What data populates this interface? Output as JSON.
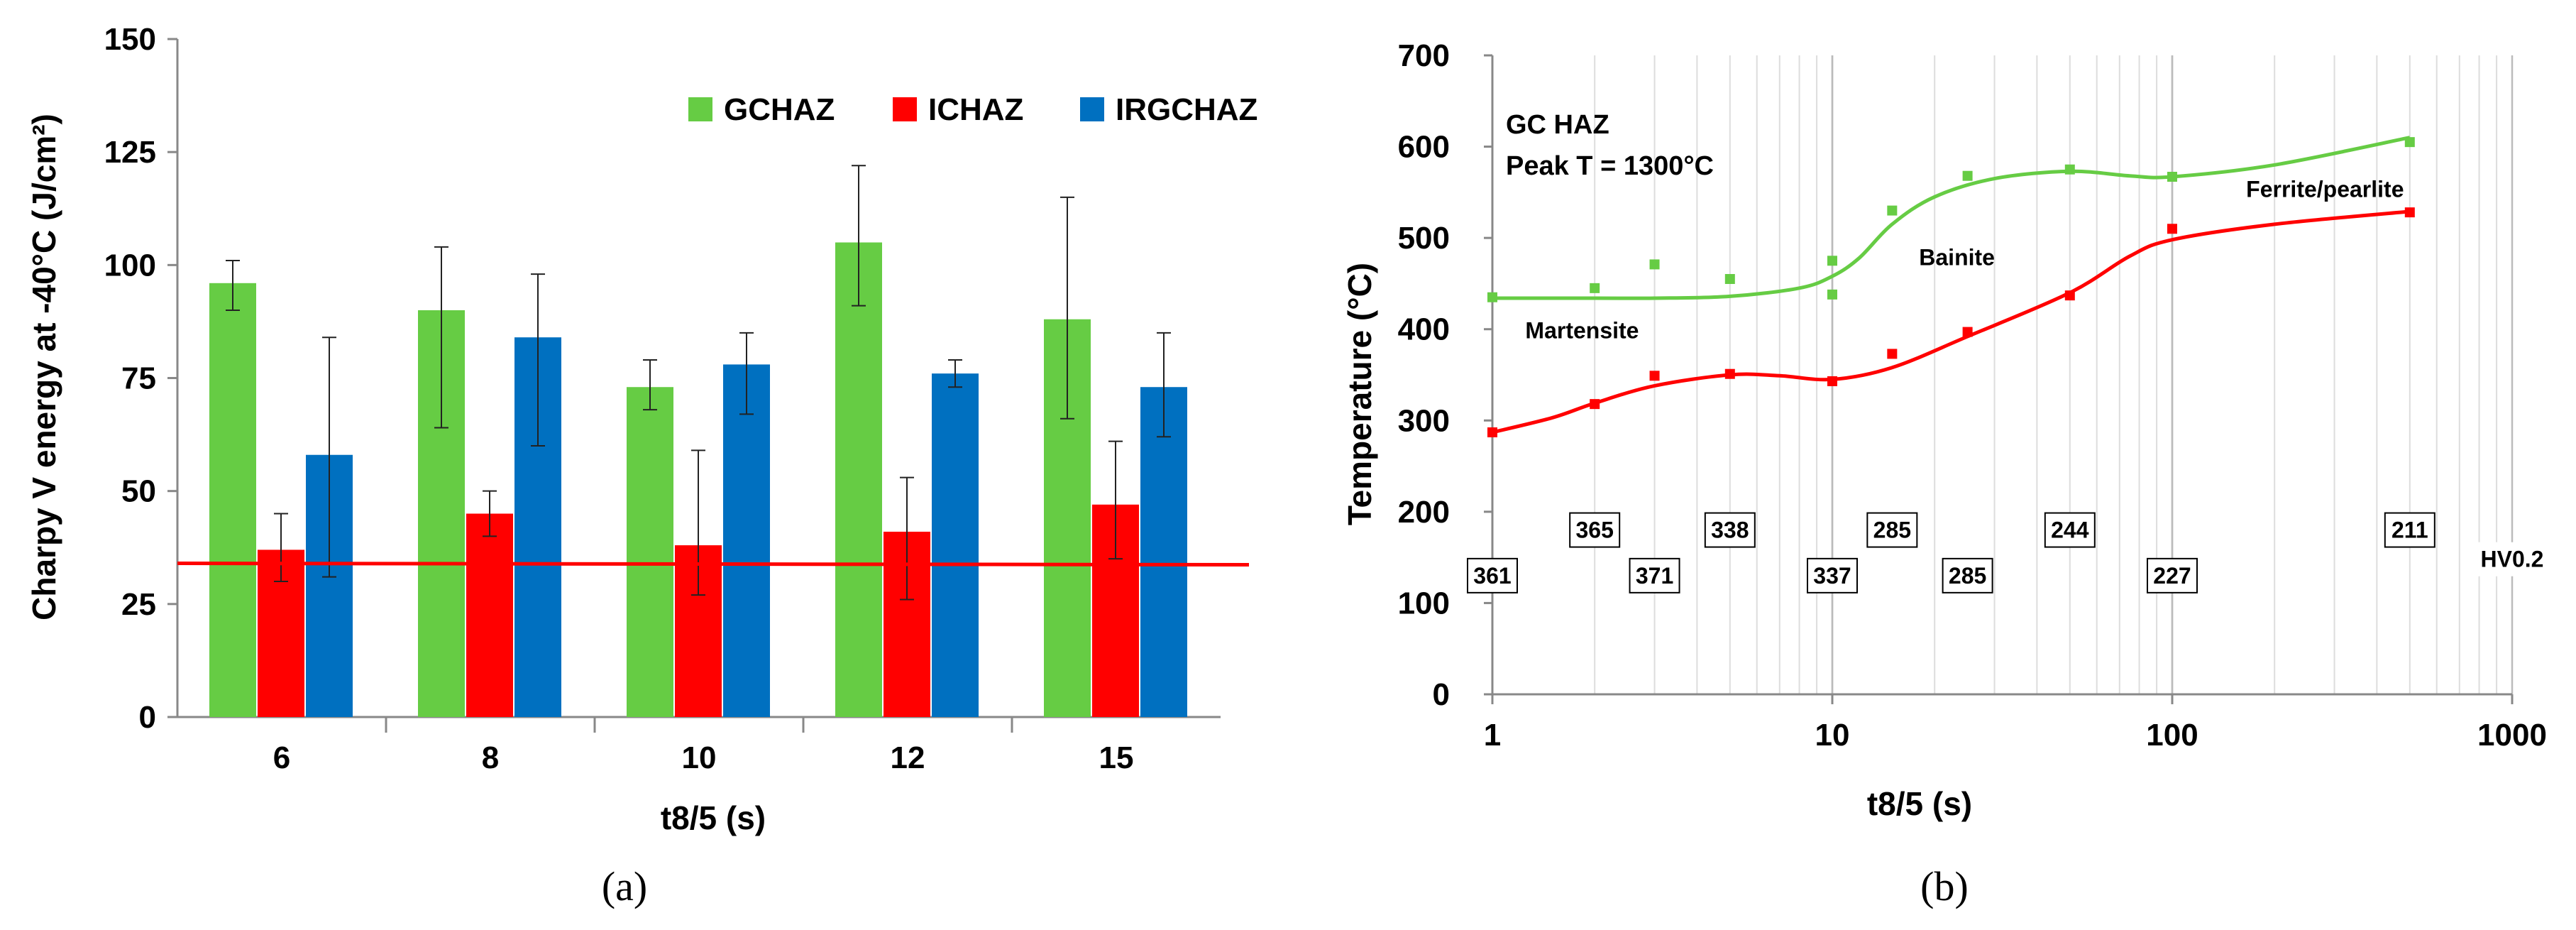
{
  "chart_data": [
    {
      "id": "a",
      "type": "bar",
      "caption": "(a)",
      "xlabel": "t8/5 (s)",
      "ylabel": "Charpy V energy at -40°C (J/cm²)",
      "ylim": [
        0,
        150
      ],
      "yticks": [
        0,
        25,
        50,
        75,
        100,
        125,
        150
      ],
      "categories": [
        "6",
        "8",
        "10",
        "12",
        "15"
      ],
      "series": [
        {
          "name": "GCHAZ",
          "color": "#66cc44",
          "values": [
            96,
            90,
            73,
            105,
            88
          ],
          "err_low": [
            90,
            64,
            68,
            91,
            66
          ],
          "err_high": [
            101,
            104,
            79,
            122,
            115
          ]
        },
        {
          "name": "ICHAZ",
          "color": "#ff0000",
          "values": [
            37,
            45,
            38,
            41,
            47
          ],
          "err_low": [
            30,
            40,
            27,
            26,
            35
          ],
          "err_high": [
            45,
            50,
            59,
            53,
            61
          ]
        },
        {
          "name": "IRGCHAZ",
          "color": "#0070c0",
          "values": [
            58,
            84,
            78,
            76,
            73
          ],
          "err_low": [
            31,
            60,
            67,
            73,
            62
          ],
          "err_high": [
            84,
            98,
            85,
            79,
            85
          ]
        }
      ],
      "reference_line": {
        "y_start": 34,
        "y_end": 34,
        "color": "#ff0000"
      },
      "legend_position": "top-right",
      "grid": false
    },
    {
      "id": "b",
      "type": "line",
      "caption": "(b)",
      "xlabel": "t8/5 (s)",
      "ylabel": "Temperature (°C)",
      "xscale": "log",
      "xlim": [
        1,
        1000
      ],
      "xticks": [
        1,
        10,
        100,
        1000
      ],
      "xtick_labels": [
        "1",
        "10",
        "100",
        "1000"
      ],
      "ylim": [
        0,
        700
      ],
      "yticks": [
        0,
        100,
        200,
        300,
        400,
        500,
        600,
        700
      ],
      "title_lines": [
        "GC HAZ",
        "Peak T = 1300°C"
      ],
      "phase_labels": [
        {
          "text": "Martensite",
          "x": 1.25,
          "y": 390
        },
        {
          "text": "Bainite",
          "x": 18,
          "y": 470
        },
        {
          "text": "Ferrite/pearlite",
          "x": 165,
          "y": 545
        }
      ],
      "series": [
        {
          "name": "Start (green)",
          "color": "#66cc44",
          "points": [
            [
              1,
              435
            ],
            [
              2,
              445
            ],
            [
              3,
              471
            ],
            [
              5,
              455
            ],
            [
              10,
              475
            ],
            [
              10,
              438
            ],
            [
              15,
              530
            ],
            [
              25,
              568
            ],
            [
              50,
              575
            ],
            [
              100,
              567
            ],
            [
              500,
              605
            ]
          ],
          "curve": [
            [
              1,
              434
            ],
            [
              2,
              434
            ],
            [
              3,
              434
            ],
            [
              5,
              436
            ],
            [
              8,
              445
            ],
            [
              10,
              458
            ],
            [
              12,
              478
            ],
            [
              15,
              515
            ],
            [
              20,
              545
            ],
            [
              30,
              565
            ],
            [
              50,
              573
            ],
            [
              75,
              568
            ],
            [
              100,
              567
            ],
            [
              200,
              580
            ],
            [
              500,
              610
            ]
          ]
        },
        {
          "name": "Finish (red)",
          "color": "#ff0000",
          "points": [
            [
              1,
              287
            ],
            [
              2,
              318
            ],
            [
              3,
              349
            ],
            [
              5,
              351
            ],
            [
              10,
              343
            ],
            [
              15,
              373
            ],
            [
              25,
              397
            ],
            [
              50,
              437
            ],
            [
              100,
              510
            ],
            [
              500,
              528
            ]
          ],
          "curve": [
            [
              1,
              287
            ],
            [
              1.5,
              303
            ],
            [
              2,
              319
            ],
            [
              3,
              338
            ],
            [
              5,
              350
            ],
            [
              7,
              349
            ],
            [
              10,
              345
            ],
            [
              15,
              358
            ],
            [
              25,
              392
            ],
            [
              50,
              440
            ],
            [
              75,
              480
            ],
            [
              100,
              498
            ],
            [
              200,
              515
            ],
            [
              500,
              529
            ]
          ]
        }
      ],
      "hardness_labels": [
        {
          "text": "361",
          "x": 1,
          "y": 130
        },
        {
          "text": "365",
          "x": 2,
          "y": 180
        },
        {
          "text": "371",
          "x": 3,
          "y": 130
        },
        {
          "text": "338",
          "x": 5,
          "y": 180
        },
        {
          "text": "337",
          "x": 10,
          "y": 130
        },
        {
          "text": "285",
          "x": 15,
          "y": 180
        },
        {
          "text": "285",
          "x": 25,
          "y": 130
        },
        {
          "text": "244",
          "x": 50,
          "y": 180
        },
        {
          "text": "227",
          "x": 100,
          "y": 130
        },
        {
          "text": "211",
          "x": 500,
          "y": 180
        },
        {
          "text": "HV0.2",
          "x": 1000,
          "y": 148
        }
      ],
      "grid": "vertical-log"
    }
  ]
}
